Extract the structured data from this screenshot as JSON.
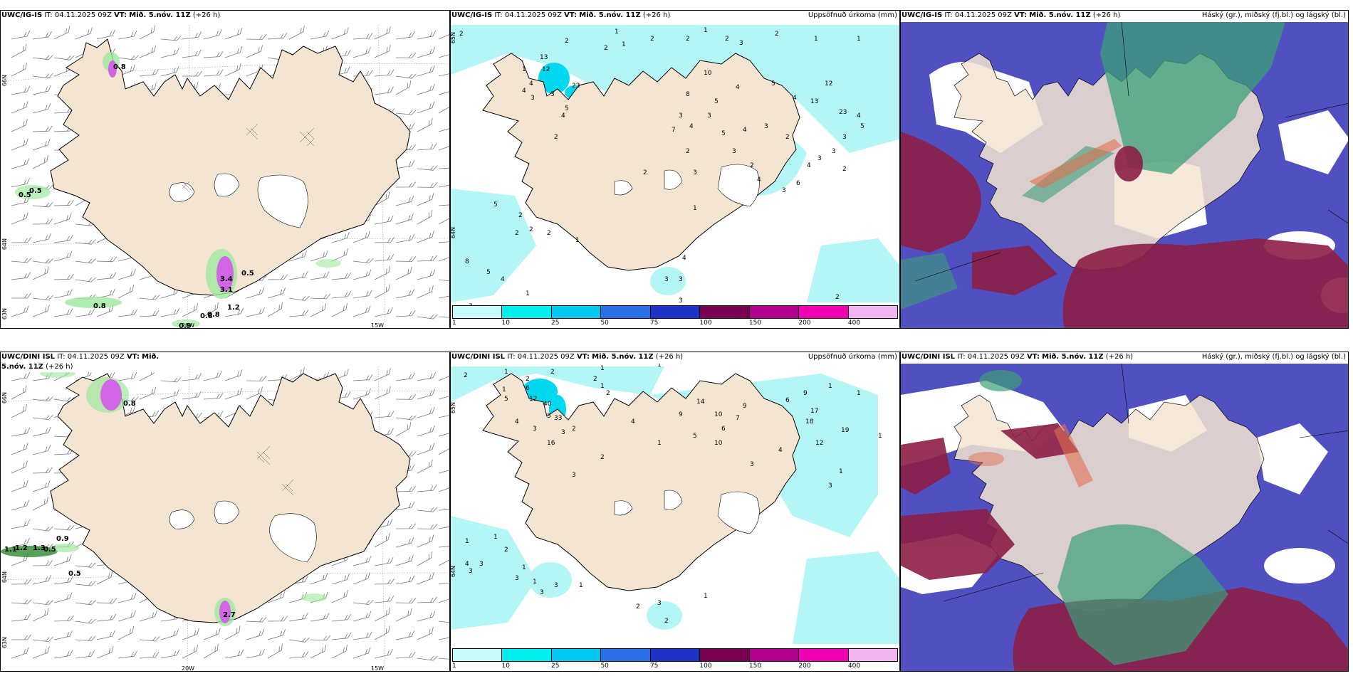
{
  "panels": [
    {
      "id": "p1",
      "model": "UWC/IG-IS",
      "it_label": "IT:",
      "it": "04.11.2025 09Z",
      "vt_label": "VT:",
      "vt": "Mið. 5.nóv. 11Z",
      "lead": "(+26 h)",
      "title_right": ""
    },
    {
      "id": "p2",
      "model": "UWC/IG-IS",
      "it_label": "IT:",
      "it": "04.11.2025 09Z",
      "vt_label": "VT:",
      "vt": "Mið. 5.nóv. 11Z",
      "lead": "(+26 h)",
      "title_right": "Uppsöfnuð úrkoma (mm)"
    },
    {
      "id": "p3",
      "model": "UWC/IG-IS",
      "it_label": "IT:",
      "it": "04.11.2025 09Z",
      "vt_label": "VT:",
      "vt": "Mið. 5.nóv. 11Z",
      "lead": "(+26 h)",
      "title_right": "Háský (gr.), miðský (fj.bl.) og lágský (bl.)"
    },
    {
      "id": "p4",
      "model": "UWC/DINI ISL",
      "it_label": "IT:",
      "it": "04.11.2025 09Z",
      "vt_label": "VT:",
      "vt": "Mið. 5.nóv. 11Z",
      "lead": "(+26 h)",
      "title_right": ""
    },
    {
      "id": "p5",
      "model": "UWC/DINI ISL",
      "it_label": "IT:",
      "it": "04.11.2025 09Z",
      "vt_label": "VT:",
      "vt": "Mið. 5.nóv. 11Z",
      "lead": "(+26 h)",
      "title_right": "Uppsöfnuð úrkoma (mm)"
    },
    {
      "id": "p6",
      "model": "UWC/DINI ISL",
      "it_label": "IT:",
      "it": "04.11.2025 09Z",
      "vt_label": "VT:",
      "vt": "Mið. 5.nóv. 11Z",
      "lead": "(+26 h)",
      "title_right": "Háský (gr.), miðský (fj.bl.) og lágský (bl.)"
    }
  ],
  "axis": {
    "lat_66": "66N",
    "lat_64": "64N",
    "lat_63": "63N",
    "lat_65": "65N",
    "lon_20": "20W",
    "lon_15": "15W"
  },
  "colorbar": {
    "ticks": [
      "1",
      "10",
      "25",
      "50",
      "75",
      "100",
      "150",
      "200",
      "400"
    ],
    "colors": [
      "#c8fafa",
      "#00f0f0",
      "#00c8f0",
      "#2c6ee6",
      "#1e32c8",
      "#780050",
      "#b40090",
      "#f000b4",
      "#f0b4f0"
    ]
  },
  "colors": {
    "land": "#f4e4d2",
    "sea": "#ffffff",
    "precip_light": "#b4f5f5",
    "precip_mid": "#00d8f0",
    "wind_green": "#9ee89e",
    "wind_pink": "#d264e6",
    "high_cloud": "#3ca078",
    "mid_cloud": "#8c1e46",
    "low_cloud": "#5050c0"
  },
  "p1_labels": [
    "0.8",
    "0.5",
    "0.5",
    "0.5",
    "0.8",
    "3.4",
    "3.1",
    "1.2",
    "0.8",
    "0.9",
    "0.8"
  ],
  "p4_labels": [
    "0.9",
    "1.2",
    "1.3",
    "1.1",
    "0.5",
    "0.5",
    "2.7",
    "0.8"
  ],
  "p2_labels": [
    "2",
    "1",
    "2",
    "2",
    "2",
    "2",
    "1",
    "1",
    "3",
    "1",
    "1",
    "2",
    "2",
    "13",
    "12",
    "1",
    "4",
    "3",
    "23",
    "2",
    "4",
    "5",
    "3",
    "4",
    "10",
    "8",
    "5",
    "4",
    "5",
    "12",
    "4",
    "3",
    "2",
    "13",
    "23",
    "4",
    "5",
    "3",
    "3",
    "3",
    "4",
    "6",
    "3",
    "4",
    "2",
    "3",
    "4",
    "5",
    "3",
    "4",
    "3",
    "7",
    "2",
    "2",
    "3",
    "2",
    "1",
    "5",
    "2",
    "2",
    "2",
    "2",
    "1",
    "8",
    "5",
    "4",
    "4",
    "3",
    "3",
    "7",
    "1",
    "3",
    "2"
  ],
  "p5_labels": [
    "2",
    "1",
    "2",
    "2",
    "2",
    "1",
    "1",
    "2",
    "6",
    "1",
    "5",
    "12",
    "40",
    "5",
    "33",
    "4",
    "3",
    "2",
    "3",
    "16",
    "4",
    "1",
    "9",
    "14",
    "10",
    "9",
    "7",
    "6",
    "6",
    "17",
    "18",
    "5",
    "10",
    "9",
    "1",
    "12",
    "19",
    "4",
    "3",
    "1",
    "3",
    "1",
    "1",
    "1",
    "2",
    "3",
    "1",
    "1",
    "4",
    "3",
    "3",
    "3",
    "2",
    "1",
    "1",
    "1",
    "3",
    "3",
    "2",
    "3",
    "2",
    "1"
  ]
}
